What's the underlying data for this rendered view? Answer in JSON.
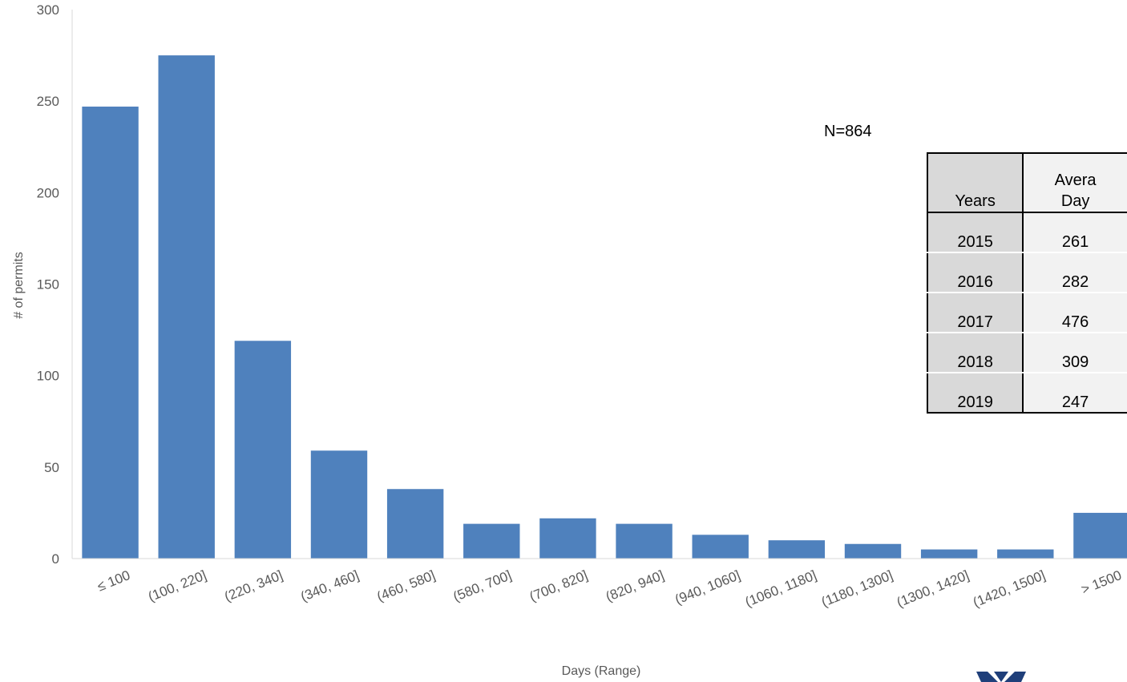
{
  "chart_data": {
    "type": "bar",
    "categories": [
      "≤ 100",
      "(100, 220]",
      "(220, 340]",
      "(340, 460]",
      "(460, 580]",
      "(580, 700]",
      "(700, 820]",
      "(820, 940]",
      "(940, 1060]",
      "(1060, 1180]",
      "(1180, 1300]",
      "(1300, 1420]",
      "(1420, 1500]",
      "> 1500"
    ],
    "values": [
      247,
      275,
      119,
      59,
      38,
      19,
      22,
      19,
      13,
      10,
      8,
      5,
      5,
      25
    ],
    "xlabel": "Days (Range)",
    "ylabel": "# of permits",
    "ylim": [
      0,
      300
    ],
    "yticks": [
      "0",
      "50",
      "100",
      "150",
      "200",
      "250",
      "300"
    ],
    "bar_color": "#4f81bd",
    "grid": false,
    "annotation": "N=864"
  },
  "table": {
    "headers": [
      "Years",
      "Avera",
      "Day"
    ],
    "rows": [
      {
        "year": "2015",
        "avg": "261"
      },
      {
        "year": "2016",
        "avg": "282"
      },
      {
        "year": "2017",
        "avg": "476"
      },
      {
        "year": "2018",
        "avg": "309"
      },
      {
        "year": "2019",
        "avg": "247"
      }
    ]
  }
}
